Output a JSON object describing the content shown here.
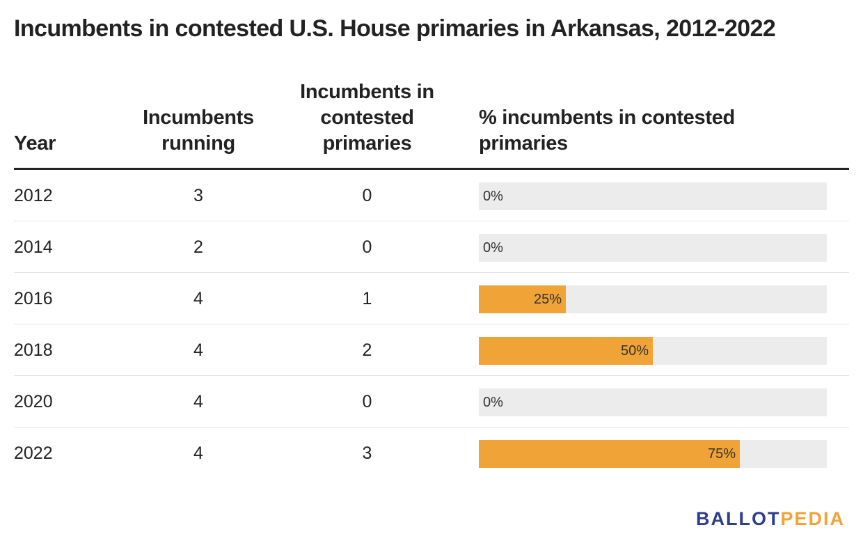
{
  "title": "Incumbents in contested U.S. House primaries in Arkansas, 2012-2022",
  "columns": {
    "year": [
      "Year"
    ],
    "running": [
      "Incumbents",
      "running"
    ],
    "contested": [
      "Incumbents in",
      "contested",
      "primaries"
    ],
    "pct": [
      "% incumbents in contested",
      "primaries"
    ]
  },
  "colors": {
    "bar_fill": "#f0a336",
    "bar_track": "#ececec",
    "logo_ballot": "#2f3d8f",
    "logo_pedia": "#f0a336"
  },
  "chart_data": {
    "type": "table",
    "title": "Incumbents in contested U.S. House primaries in Arkansas, 2012-2022",
    "columns": [
      "Year",
      "Incumbents running",
      "Incumbents in contested primaries",
      "% incumbents in contested primaries"
    ],
    "bar_range": [
      0,
      100
    ],
    "rows": [
      {
        "year": "2012",
        "running": "3",
        "contested": "0",
        "pct": 0,
        "pct_label": "0%"
      },
      {
        "year": "2014",
        "running": "2",
        "contested": "0",
        "pct": 0,
        "pct_label": "0%"
      },
      {
        "year": "2016",
        "running": "4",
        "contested": "1",
        "pct": 25,
        "pct_label": "25%"
      },
      {
        "year": "2018",
        "running": "4",
        "contested": "2",
        "pct": 50,
        "pct_label": "50%"
      },
      {
        "year": "2020",
        "running": "4",
        "contested": "0",
        "pct": 0,
        "pct_label": "0%"
      },
      {
        "year": "2022",
        "running": "4",
        "contested": "3",
        "pct": 75,
        "pct_label": "75%"
      }
    ]
  },
  "logo": {
    "part1": "BALLOT",
    "part2": "PEDIA"
  }
}
